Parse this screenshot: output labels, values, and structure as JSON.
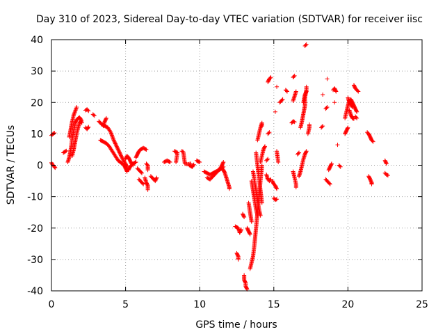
{
  "chart_data": {
    "type": "scatter",
    "title": "Day 310 of 2023, Sidereal Day-to-day VTEC variation (SDTVAR) for receiver iisc",
    "xlabel": "GPS time / hours",
    "ylabel": "SDTVAR / TECUs",
    "xlim": [
      0,
      25
    ],
    "ylim": [
      -40,
      40
    ],
    "xticks": [
      0,
      5,
      10,
      15,
      20,
      25
    ],
    "yticks": [
      -40,
      -30,
      -20,
      -10,
      0,
      10,
      20,
      30,
      40
    ],
    "grid": true,
    "marker": "plus",
    "color": "#ff0000",
    "arcs": [
      [
        [
          0.0,
          9.5
        ],
        [
          0.1,
          10.0
        ],
        [
          0.2,
          10.3
        ]
      ],
      [
        [
          0.0,
          0.8
        ],
        [
          0.1,
          0.0
        ],
        [
          0.2,
          -0.5
        ],
        [
          0.25,
          -0.8
        ]
      ],
      [
        [
          0.8,
          4.0
        ],
        [
          0.9,
          4.3
        ],
        [
          1.0,
          4.6
        ]
      ],
      [
        [
          1.1,
          1.0
        ],
        [
          1.2,
          2.5
        ],
        [
          1.3,
          5.0
        ],
        [
          1.4,
          8.5
        ],
        [
          1.5,
          11.0
        ],
        [
          1.6,
          13.5
        ],
        [
          1.7,
          14.5
        ],
        [
          1.8,
          15.0
        ],
        [
          1.9,
          15.2
        ],
        [
          2.0,
          14.5
        ],
        [
          2.05,
          13.5
        ]
      ],
      [
        [
          1.2,
          9.0
        ],
        [
          1.3,
          11.5
        ],
        [
          1.4,
          14.0
        ],
        [
          1.5,
          16.0
        ],
        [
          1.6,
          17.2
        ],
        [
          1.7,
          18.5
        ]
      ],
      [
        [
          1.4,
          3.0
        ],
        [
          1.5,
          5.0
        ],
        [
          1.6,
          7.5
        ],
        [
          1.7,
          10.0
        ],
        [
          1.8,
          12.0
        ],
        [
          1.9,
          13.5
        ],
        [
          2.0,
          14.2
        ]
      ],
      [
        [
          2.3,
          12.0
        ],
        [
          2.4,
          11.5
        ],
        [
          2.5,
          12.2
        ]
      ],
      [
        [
          2.3,
          17.5
        ],
        [
          2.4,
          17.8
        ],
        [
          2.5,
          17.3
        ]
      ],
      [
        [
          2.8,
          16.2
        ],
        [
          2.9,
          15.8
        ]
      ],
      [
        [
          3.2,
          14.0
        ],
        [
          3.4,
          13.0
        ],
        [
          3.6,
          12.5
        ],
        [
          3.8,
          12.0
        ],
        [
          4.0,
          10.5
        ],
        [
          4.2,
          8.0
        ],
        [
          4.4,
          6.0
        ],
        [
          4.6,
          4.0
        ],
        [
          4.8,
          2.0
        ],
        [
          5.0,
          0.5
        ],
        [
          5.1,
          -0.5
        ]
      ],
      [
        [
          3.3,
          8.0
        ],
        [
          3.5,
          7.5
        ],
        [
          3.7,
          7.0
        ],
        [
          3.9,
          6.0
        ],
        [
          4.1,
          4.5
        ],
        [
          4.3,
          3.0
        ],
        [
          4.5,
          1.5
        ],
        [
          4.7,
          0.8
        ],
        [
          4.9,
          0.0
        ],
        [
          5.0,
          -1.0
        ],
        [
          5.1,
          -2.0
        ]
      ],
      [
        [
          3.5,
          12.5
        ],
        [
          3.6,
          14.0
        ],
        [
          3.7,
          15.0
        ]
      ],
      [
        [
          5.0,
          2.0
        ],
        [
          5.1,
          3.0
        ],
        [
          5.2,
          2.5
        ],
        [
          5.3,
          1.5
        ],
        [
          5.4,
          0.5
        ],
        [
          5.5,
          0.0
        ]
      ],
      [
        [
          5.1,
          -1.0
        ],
        [
          5.2,
          -1.5
        ],
        [
          5.3,
          -0.5
        ],
        [
          5.5,
          0.5
        ],
        [
          5.7,
          1.0
        ]
      ],
      [
        [
          5.7,
          2.5
        ],
        [
          5.8,
          3.5
        ],
        [
          5.9,
          4.5
        ],
        [
          6.0,
          5.0
        ],
        [
          6.2,
          5.5
        ],
        [
          6.4,
          5.0
        ]
      ],
      [
        [
          5.8,
          -1.0
        ],
        [
          5.9,
          -1.5
        ],
        [
          6.0,
          -2.0
        ],
        [
          6.1,
          -2.5
        ]
      ],
      [
        [
          5.9,
          -4.5
        ],
        [
          6.0,
          -5.0
        ],
        [
          6.1,
          -5.5
        ],
        [
          6.2,
          -6.0
        ]
      ],
      [
        [
          6.4,
          0.5
        ],
        [
          6.5,
          0.0
        ],
        [
          6.5,
          -1.5
        ]
      ],
      [
        [
          6.3,
          -4.0
        ],
        [
          6.4,
          -5.5
        ],
        [
          6.5,
          -6.5
        ],
        [
          6.5,
          -7.8
        ]
      ],
      [
        [
          6.7,
          -3.5
        ],
        [
          6.8,
          -4.0
        ],
        [
          6.9,
          -4.5
        ],
        [
          7.0,
          -5.0
        ],
        [
          7.1,
          -4.0
        ]
      ],
      [
        [
          7.6,
          1.0
        ],
        [
          7.8,
          1.5
        ],
        [
          8.0,
          1.0
        ]
      ],
      [
        [
          8.3,
          4.5
        ],
        [
          8.5,
          4.0
        ],
        [
          8.4,
          1.0
        ]
      ],
      [
        [
          8.8,
          4.5
        ],
        [
          8.9,
          4.2
        ],
        [
          9.0,
          0.5
        ],
        [
          9.2,
          0.3
        ],
        [
          9.4,
          0.5
        ]
      ],
      [
        [
          9.3,
          0.0
        ],
        [
          9.5,
          -0.5
        ],
        [
          9.6,
          0.2
        ]
      ],
      [
        [
          9.8,
          1.5
        ],
        [
          9.9,
          1.2
        ],
        [
          10.0,
          1.0
        ]
      ],
      [
        [
          10.3,
          -2.0
        ],
        [
          10.5,
          -2.5
        ],
        [
          10.7,
          -3.0
        ],
        [
          10.9,
          -2.5
        ],
        [
          11.1,
          -2.0
        ],
        [
          11.3,
          -1.5
        ],
        [
          11.5,
          -1.0
        ],
        [
          11.6,
          -0.5
        ]
      ],
      [
        [
          10.5,
          -4.0
        ],
        [
          10.7,
          -4.5
        ],
        [
          10.9,
          -3.5
        ],
        [
          11.1,
          -2.5
        ],
        [
          11.3,
          -1.5
        ],
        [
          11.5,
          0.0
        ],
        [
          11.6,
          1.0
        ]
      ],
      [
        [
          11.5,
          -1.0
        ],
        [
          11.6,
          -1.5
        ],
        [
          11.7,
          -2.5
        ],
        [
          11.8,
          -4.0
        ],
        [
          11.9,
          -5.5
        ],
        [
          12.0,
          -7.0
        ],
        [
          12.0,
          -7.5
        ]
      ],
      [
        [
          12.4,
          -19.5
        ],
        [
          12.6,
          -20.0
        ],
        [
          12.7,
          -21.5
        ],
        [
          12.8,
          -20.5
        ]
      ],
      [
        [
          12.5,
          -28.0
        ],
        [
          12.6,
          -29.0
        ],
        [
          12.6,
          -30.0
        ]
      ],
      [
        [
          12.9,
          -15.5
        ],
        [
          13.0,
          -16.5
        ]
      ],
      [
        [
          13.0,
          -35.0
        ],
        [
          13.0,
          -36.5
        ],
        [
          13.1,
          -37.5
        ],
        [
          13.1,
          -38.5
        ],
        [
          13.2,
          -39.5
        ]
      ],
      [
        [
          13.2,
          -20.0
        ],
        [
          13.3,
          -21.0
        ],
        [
          13.4,
          -22.0
        ]
      ],
      [
        [
          13.3,
          -12.0
        ],
        [
          13.4,
          -15.0
        ],
        [
          13.5,
          -18.0
        ]
      ],
      [
        [
          13.4,
          -33.0
        ],
        [
          13.5,
          -31.0
        ],
        [
          13.6,
          -29.0
        ],
        [
          13.7,
          -25.0
        ],
        [
          13.8,
          -20.0
        ],
        [
          13.9,
          -15.0
        ],
        [
          14.0,
          -10.0
        ],
        [
          14.1,
          -5.0
        ],
        [
          14.2,
          0.0
        ]
      ],
      [
        [
          13.5,
          -5.0
        ],
        [
          13.6,
          -8.0
        ],
        [
          13.7,
          -11.0
        ],
        [
          13.8,
          -14.0
        ],
        [
          13.9,
          -16.0
        ]
      ],
      [
        [
          13.6,
          -2.0
        ],
        [
          13.7,
          -5.0
        ],
        [
          13.8,
          -8.0
        ],
        [
          13.9,
          -11.0
        ],
        [
          14.0,
          -14.0
        ],
        [
          14.1,
          -16.0
        ]
      ],
      [
        [
          13.8,
          4.0
        ],
        [
          13.9,
          0.0
        ],
        [
          14.0,
          -4.0
        ],
        [
          14.1,
          -8.0
        ],
        [
          14.2,
          -12.0
        ]
      ],
      [
        [
          13.9,
          8.0
        ],
        [
          14.0,
          10.0
        ],
        [
          14.1,
          12.0
        ],
        [
          14.2,
          13.5
        ],
        [
          14.2,
          12.5
        ]
      ],
      [
        [
          14.1,
          1.0
        ],
        [
          14.2,
          3.0
        ],
        [
          14.3,
          5.0
        ],
        [
          14.4,
          6.0
        ]
      ],
      [
        [
          14.5,
          -3.0
        ],
        [
          14.6,
          -4.5
        ],
        [
          14.7,
          -5.0
        ],
        [
          14.8,
          -4.5
        ]
      ],
      [
        [
          14.5,
          1.5
        ],
        [
          14.6,
          2.0
        ]
      ],
      [
        [
          14.6,
          26.5
        ],
        [
          14.7,
          27.5
        ],
        [
          14.8,
          28.0
        ]
      ],
      [
        [
          14.6,
          10.0
        ],
        [
          14.7,
          10.5
        ]
      ],
      [
        [
          14.9,
          -5.0
        ],
        [
          15.0,
          -6.0
        ],
        [
          15.1,
          -6.5
        ],
        [
          15.2,
          -7.5
        ]
      ],
      [
        [
          15.0,
          -10.5
        ],
        [
          15.1,
          -11.0
        ],
        [
          15.2,
          -10.8
        ]
      ],
      [
        [
          15.1,
          17.0
        ]
      ],
      [
        [
          15.2,
          25.0
        ]
      ],
      [
        [
          15.2,
          4.5
        ],
        [
          15.3,
          1.0
        ]
      ],
      [
        [
          15.4,
          20.0
        ],
        [
          15.5,
          20.5
        ],
        [
          15.6,
          21.0
        ]
      ],
      [
        [
          15.8,
          24.0
        ],
        [
          15.9,
          23.5
        ]
      ],
      [
        [
          16.2,
          13.5
        ],
        [
          16.3,
          14.0
        ],
        [
          16.4,
          13.8
        ]
      ],
      [
        [
          16.3,
          20.5
        ],
        [
          16.4,
          22.0
        ],
        [
          16.5,
          23.5
        ]
      ],
      [
        [
          16.3,
          -2.0
        ],
        [
          16.4,
          -4.0
        ],
        [
          16.5,
          -6.0
        ],
        [
          16.5,
          -7.0
        ]
      ],
      [
        [
          16.3,
          28.0
        ],
        [
          16.4,
          28.5
        ]
      ],
      [
        [
          16.6,
          3.5
        ],
        [
          16.7,
          4.0
        ]
      ],
      [
        [
          16.7,
          -3.5
        ],
        [
          16.8,
          -2.0
        ],
        [
          16.9,
          0.0
        ],
        [
          17.0,
          2.0
        ],
        [
          17.1,
          3.5
        ],
        [
          17.2,
          4.5
        ]
      ],
      [
        [
          16.8,
          12.0
        ],
        [
          16.9,
          14.0
        ],
        [
          17.0,
          16.5
        ],
        [
          17.1,
          19.0
        ],
        [
          17.1,
          21.5
        ],
        [
          17.2,
          24.0
        ],
        [
          17.2,
          25.0
        ]
      ],
      [
        [
          17.0,
          20.0
        ],
        [
          17.1,
          22.5
        ],
        [
          17.2,
          23.5
        ]
      ],
      [
        [
          17.1,
          38.0
        ],
        [
          17.2,
          38.5
        ]
      ],
      [
        [
          17.3,
          10.0
        ],
        [
          17.4,
          12.0
        ],
        [
          17.4,
          13.0
        ]
      ],
      [
        [
          18.2,
          12.0
        ],
        [
          18.3,
          12.5
        ]
      ],
      [
        [
          18.3,
          22.5
        ]
      ],
      [
        [
          18.5,
          -4.5
        ],
        [
          18.6,
          -5.0
        ],
        [
          18.7,
          -5.5
        ],
        [
          18.8,
          -6.0
        ]
      ],
      [
        [
          18.5,
          18.0
        ],
        [
          18.6,
          18.5
        ]
      ],
      [
        [
          18.6,
          27.5
        ]
      ],
      [
        [
          18.7,
          -1.5
        ],
        [
          18.8,
          -0.5
        ],
        [
          18.9,
          0.5
        ]
      ],
      [
        [
          19.0,
          24.0
        ],
        [
          19.1,
          24.5
        ],
        [
          19.2,
          23.5
        ]
      ],
      [
        [
          19.1,
          20.0
        ]
      ],
      [
        [
          19.3,
          6.5
        ]
      ],
      [
        [
          19.4,
          0.0
        ],
        [
          19.5,
          -0.5
        ]
      ],
      [
        [
          19.8,
          10.0
        ],
        [
          19.9,
          11.0
        ],
        [
          20.0,
          12.0
        ]
      ],
      [
        [
          19.8,
          15.0
        ],
        [
          19.9,
          17.0
        ],
        [
          20.0,
          19.0
        ],
        [
          20.1,
          20.5
        ],
        [
          20.2,
          21.0
        ],
        [
          20.3,
          20.0
        ],
        [
          20.4,
          19.0
        ],
        [
          20.5,
          18.0
        ],
        [
          20.6,
          17.0
        ]
      ],
      [
        [
          20.0,
          21.5
        ],
        [
          20.1,
          20.0
        ],
        [
          20.2,
          19.5
        ],
        [
          20.3,
          18.5
        ]
      ],
      [
        [
          20.1,
          17.5
        ],
        [
          20.2,
          16.0
        ],
        [
          20.3,
          15.0
        ],
        [
          20.4,
          14.8
        ]
      ],
      [
        [
          20.4,
          25.5
        ],
        [
          20.5,
          24.5
        ],
        [
          20.6,
          24.0
        ],
        [
          20.7,
          23.5
        ]
      ],
      [
        [
          20.5,
          15.5
        ],
        [
          20.6,
          15.0
        ]
      ],
      [
        [
          21.3,
          10.5
        ],
        [
          21.4,
          10.0
        ],
        [
          21.5,
          9.0
        ],
        [
          21.6,
          8.0
        ],
        [
          21.7,
          7.5
        ]
      ],
      [
        [
          21.4,
          -3.5
        ],
        [
          21.5,
          -4.5
        ],
        [
          21.6,
          -5.5
        ],
        [
          21.6,
          -6.0
        ]
      ],
      [
        [
          22.5,
          1.5
        ],
        [
          22.6,
          0.5
        ]
      ],
      [
        [
          22.5,
          -2.5
        ],
        [
          22.6,
          -3.0
        ],
        [
          22.7,
          -3.2
        ]
      ]
    ]
  }
}
